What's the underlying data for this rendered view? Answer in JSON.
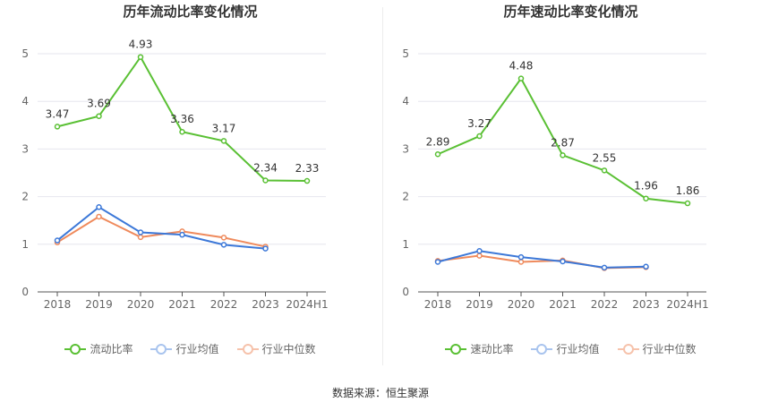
{
  "source_text": "数据来源：恒生聚源",
  "chart_data": [
    {
      "type": "line",
      "title": "历年流动比率变化情况",
      "categories": [
        "2018",
        "2019",
        "2020",
        "2021",
        "2022",
        "2023",
        "2024H1"
      ],
      "ylim": [
        0,
        5
      ],
      "yticks": [
        "0",
        "1",
        "2",
        "3",
        "4",
        "5"
      ],
      "series": [
        {
          "name": "流动比率",
          "color": "#5ac034",
          "values": [
            3.47,
            3.69,
            4.93,
            3.36,
            3.17,
            2.34,
            2.33
          ],
          "labels": [
            "3.47",
            "3.69",
            "4.93",
            "3.36",
            "3.17",
            "2.34",
            "2.33"
          ]
        },
        {
          "name": "行业均值",
          "color": "#3c78d8",
          "values": [
            1.08,
            1.78,
            1.25,
            1.2,
            0.99,
            0.91,
            null
          ]
        },
        {
          "name": "行业中位数",
          "color": "#ef8a5c",
          "values": [
            1.04,
            1.58,
            1.15,
            1.27,
            1.14,
            0.95,
            null
          ]
        }
      ]
    },
    {
      "type": "line",
      "title": "历年速动比率变化情况",
      "categories": [
        "2018",
        "2019",
        "2020",
        "2021",
        "2022",
        "2023",
        "2024H1"
      ],
      "ylim": [
        0,
        5
      ],
      "yticks": [
        "0",
        "1",
        "2",
        "3",
        "4",
        "5"
      ],
      "series": [
        {
          "name": "速动比率",
          "color": "#5ac034",
          "values": [
            2.89,
            3.27,
            4.48,
            2.87,
            2.55,
            1.96,
            1.86
          ],
          "labels": [
            "2.89",
            "3.27",
            "4.48",
            "2.87",
            "2.55",
            "1.96",
            "1.86"
          ]
        },
        {
          "name": "行业均值",
          "color": "#3c78d8",
          "values": [
            0.63,
            0.86,
            0.73,
            0.64,
            0.51,
            0.53,
            null
          ]
        },
        {
          "name": "行业中位数",
          "color": "#ef8a5c",
          "values": [
            0.65,
            0.76,
            0.63,
            0.66,
            0.5,
            0.52,
            null
          ]
        }
      ]
    }
  ]
}
